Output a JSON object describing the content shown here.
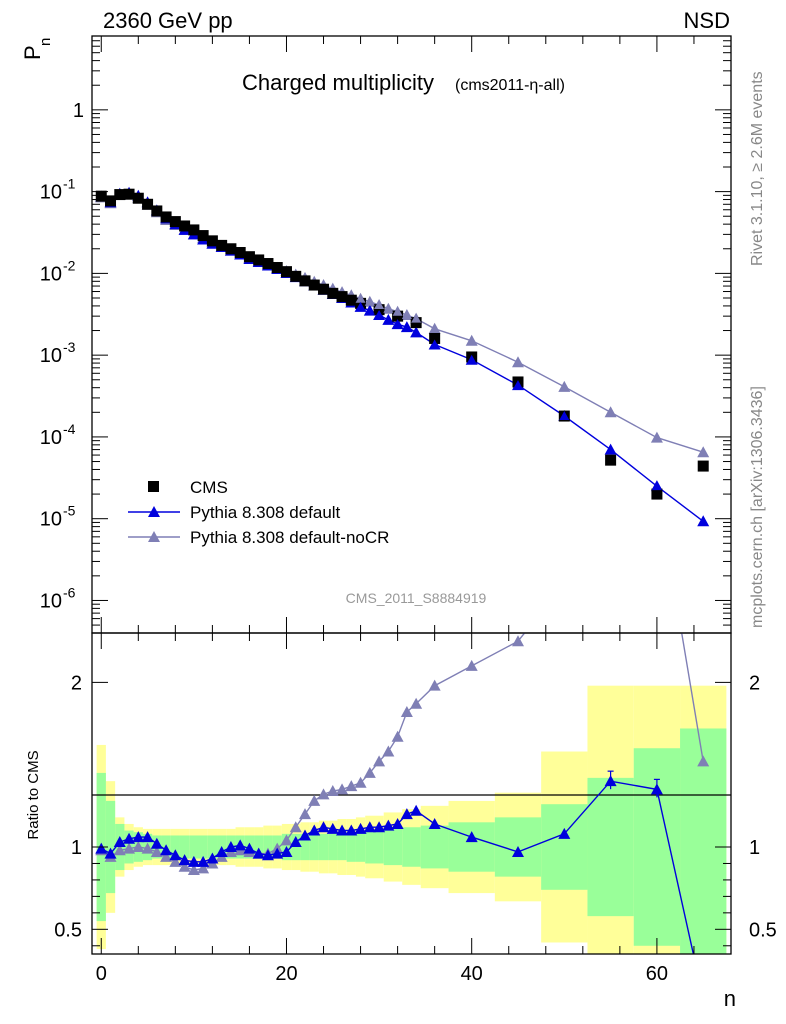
{
  "header": {
    "energy_label": "2360 GeV pp",
    "process_label": "NSD"
  },
  "side_labels": {
    "rivet": "Rivet 3.1.10, ≥ 2.6M events",
    "mcplots": "mcplots.cern.ch [arXiv:1306.3436]"
  },
  "chart_data": {
    "type": "scatter",
    "title": "Charged multiplicity",
    "subtitle": "(cms2011-η-all)",
    "analysis_id": "CMS_2011_S8884919",
    "xlabel": "n",
    "ylabel": "P_n",
    "ylabel_main": "P",
    "ylabel_sub": "n",
    "ratio_ylabel": "Ratio to CMS",
    "yscale": "log",
    "xlim": [
      -1,
      68
    ],
    "ylim": [
      4e-07,
      8
    ],
    "ratio_ylim": [
      0.35,
      2.3
    ],
    "x_ticks": [
      0,
      20,
      40,
      60
    ],
    "x_tick_labels": [
      "0",
      "20",
      "40",
      "60"
    ],
    "y_ticks": [
      1e-06,
      1e-05,
      0.0001,
      0.001,
      0.01,
      0.1,
      1
    ],
    "y_tick_labels": [
      {
        "base": "10",
        "exp": "-6"
      },
      {
        "base": "10",
        "exp": "-5"
      },
      {
        "base": "10",
        "exp": "-4"
      },
      {
        "base": "10",
        "exp": "-3"
      },
      {
        "base": "10",
        "exp": "-2"
      },
      {
        "base": "10",
        "exp": "-1"
      },
      {
        "base": "1",
        "exp": ""
      }
    ],
    "ratio_y_ticks": [
      0.5,
      1,
      2
    ],
    "ratio_y_tick_labels": [
      "0.5",
      "1",
      "2"
    ],
    "legend": [
      {
        "name": "CMS",
        "color": "#000000",
        "marker": "square"
      },
      {
        "name": "Pythia 8.308 default",
        "color": "#0000dd",
        "marker": "triangle"
      },
      {
        "name": "Pythia 8.308 default-noCR",
        "color": "#7f7fb5",
        "marker": "triangle"
      }
    ],
    "data": {
      "name": "CMS",
      "x": [
        0,
        1,
        2,
        3,
        4,
        5,
        6,
        7,
        8,
        9,
        10,
        11,
        12,
        13,
        14,
        15,
        16,
        17,
        18,
        19,
        20,
        21,
        22,
        23,
        24,
        25,
        26,
        27,
        28,
        30,
        32,
        34,
        36,
        40,
        45,
        50,
        55,
        60,
        65
      ],
      "y": [
        0.088,
        0.077,
        0.092,
        0.093,
        0.083,
        0.07,
        0.058,
        0.049,
        0.043,
        0.038,
        0.034,
        0.029,
        0.025,
        0.022,
        0.02,
        0.018,
        0.016,
        0.0146,
        0.0132,
        0.0118,
        0.0105,
        0.0092,
        0.0081,
        0.0072,
        0.0064,
        0.0057,
        0.0052,
        0.0047,
        0.0043,
        0.0036,
        0.003,
        0.0025,
        0.0016,
        0.00095,
        0.00047,
        0.00018,
        5.2e-05,
        2e-05,
        4.4e-05
      ]
    },
    "series": [
      {
        "name": "Pythia 8.308 default",
        "color": "#0000dd",
        "x": [
          0,
          1,
          2,
          3,
          4,
          5,
          6,
          7,
          8,
          9,
          10,
          11,
          12,
          13,
          14,
          15,
          16,
          17,
          18,
          19,
          20,
          21,
          22,
          23,
          24,
          25,
          26,
          27,
          28,
          29,
          30,
          31,
          32,
          33,
          34,
          36,
          40,
          45,
          50,
          55,
          60,
          65
        ],
        "y": [
          0.087,
          0.074,
          0.094,
          0.097,
          0.089,
          0.074,
          0.059,
          0.047,
          0.04,
          0.034,
          0.03,
          0.026,
          0.023,
          0.021,
          0.019,
          0.017,
          0.015,
          0.0138,
          0.0125,
          0.0113,
          0.0101,
          0.009,
          0.008,
          0.0071,
          0.0063,
          0.0056,
          0.005,
          0.0044,
          0.0039,
          0.0035,
          0.0031,
          0.0027,
          0.0024,
          0.0022,
          0.0019,
          0.00135,
          0.00088,
          0.00043,
          0.00018,
          7e-05,
          2.5e-05,
          9.3e-06
        ],
        "ratio": [
          0.99,
          0.96,
          1.03,
          1.05,
          1.06,
          1.06,
          1.02,
          0.98,
          0.95,
          0.92,
          0.91,
          0.91,
          0.93,
          0.97,
          1.0,
          1.01,
          0.99,
          0.96,
          0.95,
          0.96,
          0.97,
          1.03,
          1.07,
          1.1,
          1.12,
          1.11,
          1.1,
          1.1,
          1.11,
          1.12,
          1.12,
          1.13,
          1.14,
          1.2,
          1.22,
          1.14,
          1.06,
          0.97,
          1.08,
          1.4,
          1.35,
          0.08
        ]
      },
      {
        "name": "Pythia 8.308 default-noCR",
        "color": "#7f7fb5",
        "x": [
          0,
          1,
          2,
          3,
          4,
          5,
          6,
          7,
          8,
          9,
          10,
          11,
          12,
          13,
          14,
          15,
          16,
          17,
          18,
          19,
          20,
          21,
          22,
          23,
          24,
          25,
          26,
          27,
          28,
          29,
          30,
          31,
          32,
          33,
          34,
          36,
          40,
          45,
          50,
          55,
          60,
          65
        ],
        "y": [
          0.085,
          0.072,
          0.091,
          0.093,
          0.084,
          0.069,
          0.056,
          0.045,
          0.039,
          0.034,
          0.03,
          0.027,
          0.024,
          0.021,
          0.019,
          0.017,
          0.0155,
          0.0141,
          0.0128,
          0.0117,
          0.0107,
          0.0097,
          0.0088,
          0.0079,
          0.0072,
          0.0065,
          0.0059,
          0.0054,
          0.0049,
          0.0045,
          0.0041,
          0.0037,
          0.0034,
          0.0031,
          0.0028,
          0.0021,
          0.0015,
          0.00082,
          0.00041,
          0.0002,
          9.8e-05,
          6.5e-05
        ],
        "ratio": [
          0.98,
          0.94,
          0.98,
          0.99,
          1.0,
          0.99,
          0.97,
          0.94,
          0.91,
          0.88,
          0.86,
          0.87,
          0.9,
          0.94,
          0.97,
          0.98,
          0.97,
          0.96,
          0.96,
          0.99,
          1.04,
          1.12,
          1.2,
          1.28,
          1.32,
          1.34,
          1.35,
          1.37,
          1.39,
          1.45,
          1.52,
          1.58,
          1.67,
          1.82,
          1.87,
          1.98,
          2.1,
          2.25,
          2.6,
          2.9,
          3.2,
          1.52
        ]
      }
    ],
    "uncertainty_bands": {
      "x_edges": [
        -0.5,
        0.5,
        1.5,
        2.5,
        3.5,
        4.5,
        5.5,
        6.5,
        7.5,
        8.5,
        9.5,
        10.5,
        11.5,
        12.5,
        13.5,
        14.5,
        15.5,
        16.5,
        17.5,
        18.5,
        19.5,
        20.5,
        21.5,
        22.5,
        23.5,
        24.5,
        25.5,
        26.5,
        27.5,
        28.5,
        30.5,
        32.5,
        34.5,
        37.5,
        42.5,
        47.5,
        52.5,
        57.5,
        62.5,
        67.5
      ],
      "inner_half": [
        0.45,
        0.28,
        0.14,
        0.1,
        0.09,
        0.08,
        0.07,
        0.07,
        0.07,
        0.07,
        0.07,
        0.07,
        0.07,
        0.07,
        0.07,
        0.07,
        0.07,
        0.07,
        0.07,
        0.07,
        0.08,
        0.08,
        0.08,
        0.08,
        0.08,
        0.08,
        0.08,
        0.09,
        0.09,
        0.1,
        0.11,
        0.12,
        0.13,
        0.15,
        0.18,
        0.26,
        0.42,
        0.6,
        0.72
      ],
      "outer_half": [
        0.62,
        0.4,
        0.18,
        0.14,
        0.12,
        0.11,
        0.11,
        0.11,
        0.11,
        0.11,
        0.11,
        0.11,
        0.11,
        0.11,
        0.11,
        0.12,
        0.12,
        0.12,
        0.13,
        0.13,
        0.14,
        0.14,
        0.15,
        0.15,
        0.16,
        0.16,
        0.17,
        0.17,
        0.18,
        0.19,
        0.21,
        0.23,
        0.25,
        0.28,
        0.33,
        0.58,
        0.98,
        0.98,
        0.98
      ],
      "inner_color": "#99ff99",
      "outer_color": "#ffff99"
    }
  }
}
